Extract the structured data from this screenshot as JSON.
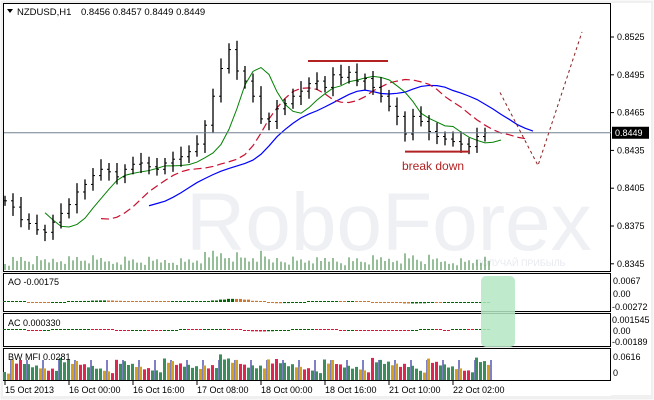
{
  "header": {
    "symbol": "NZDUSD,H1",
    "ohlc": "0.8456 0.8457 0.8449 0.8449"
  },
  "watermark": {
    "brand": "RoboForex",
    "tagline": "ПОЛУЧАЙ ПРИБЫЛЬ"
  },
  "annotation": {
    "break_label": "break down"
  },
  "current_price": "0.8449",
  "colors": {
    "bull_ao": "#006400",
    "bear_ao": "#cd7830",
    "ac_down": "#dc143c",
    "ma_fast": "#008000",
    "ma_mid": "#c8102e",
    "ma_slow": "#0000ff",
    "forecast": "#8b2020",
    "levels": "#b22222",
    "highlight": "#b4e6c3"
  },
  "price_axis": [
    "0.8525",
    "0.8495",
    "0.8465",
    "0.8435",
    "0.8405",
    "0.8375",
    "0.8345"
  ],
  "indicators": {
    "ao": {
      "label": "AO -0.00175",
      "ticks": [
        "0.0067",
        "0.00",
        "-0.00272"
      ]
    },
    "ac": {
      "label": "AC 0.000330",
      "ticks": [
        "0.001545",
        "0.00",
        "-0.00189"
      ]
    },
    "bw": {
      "label": "BW MFI 0.0281",
      "ticks": [
        "0.0616",
        "0"
      ]
    }
  },
  "time_axis": [
    "15 Oct 2013",
    "16 Oct 00:00",
    "16 Oct 16:00",
    "17 Oct 08:00",
    "18 Oct 00:00",
    "18 Oct 16:00",
    "21 Oct 10:00",
    "22 Oct 02:00"
  ],
  "chart_data": {
    "type": "line",
    "title": "NZDUSD,H1",
    "ylim": [
      0.834,
      0.8545
    ],
    "grid": false,
    "closes": [
      0.8395,
      0.839,
      0.838,
      0.8377,
      0.8372,
      0.837,
      0.8378,
      0.8385,
      0.8392,
      0.8402,
      0.8408,
      0.8415,
      0.842,
      0.8418,
      0.8414,
      0.842,
      0.8424,
      0.8425,
      0.8422,
      0.842,
      0.8425,
      0.8428,
      0.843,
      0.8434,
      0.844,
      0.8455,
      0.8478,
      0.85,
      0.8515,
      0.8498,
      0.849,
      0.8478,
      0.846,
      0.8458,
      0.8468,
      0.8472,
      0.8478,
      0.8482,
      0.8488,
      0.849,
      0.8485,
      0.8495,
      0.8493,
      0.8497,
      0.849,
      0.8492,
      0.8485,
      0.8478,
      0.847,
      0.8462,
      0.8448,
      0.8462,
      0.8458,
      0.845,
      0.8446,
      0.8444,
      0.8442,
      0.844,
      0.8438,
      0.8446,
      0.8449
    ],
    "resistance_level": 0.8506,
    "breakdown_level": 0.8434,
    "forecast_path": [
      0.8481,
      0.8423,
      0.8529
    ]
  }
}
